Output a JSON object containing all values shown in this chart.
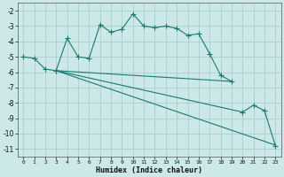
{
  "xlabel": "Humidex (Indice chaleur)",
  "bg_color": "#cce8e8",
  "grid_color": "#aacfcf",
  "line_color": "#1a7a6e",
  "xlim": [
    -0.5,
    23.5
  ],
  "ylim": [
    -11.5,
    -1.5
  ],
  "yticks": [
    -11,
    -10,
    -9,
    -8,
    -7,
    -6,
    -5,
    -4,
    -3,
    -2
  ],
  "xticks": [
    0,
    1,
    2,
    3,
    4,
    5,
    6,
    7,
    8,
    9,
    10,
    11,
    12,
    13,
    14,
    15,
    16,
    17,
    18,
    19,
    20,
    21,
    22,
    23
  ],
  "line1_x": [
    0,
    1,
    2,
    3,
    4,
    5,
    6,
    7,
    8,
    9,
    10,
    11,
    12,
    13,
    14,
    15,
    16,
    17,
    18,
    19
  ],
  "line1_y": [
    -5.0,
    -5.1,
    -5.8,
    -5.9,
    -3.8,
    -5.0,
    -5.1,
    -2.9,
    -3.4,
    -3.2,
    -2.2,
    -3.0,
    -3.1,
    -3.0,
    -3.15,
    -3.6,
    -3.5,
    -4.8,
    -6.2,
    -6.6
  ],
  "line2_x": [
    3,
    19
  ],
  "line2_y": [
    -5.9,
    -6.6
  ],
  "line3_x": [
    3,
    20,
    21,
    22,
    23
  ],
  "line3_y": [
    -5.9,
    -8.6,
    -8.15,
    -8.5,
    -10.8
  ],
  "line4_x": [
    3,
    23
  ],
  "line4_y": [
    -5.9,
    -10.75
  ]
}
